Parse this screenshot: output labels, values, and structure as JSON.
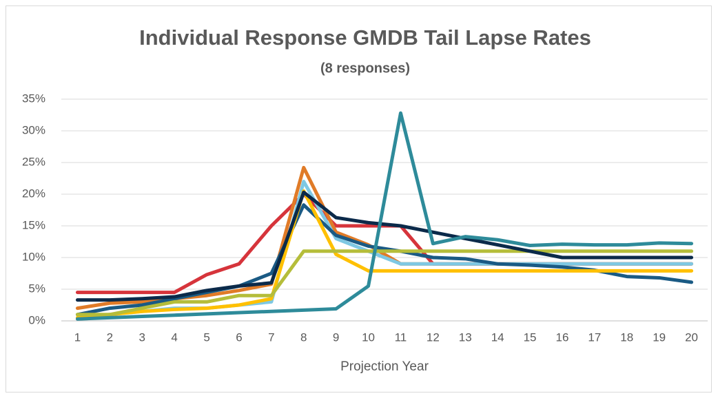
{
  "chart_data": {
    "type": "line",
    "title": "Individual Response GMDB Tail Lapse Rates",
    "subtitle": "(8 responses)",
    "x_label": "Projection Year",
    "categories": [
      "1",
      "2",
      "3",
      "4",
      "5",
      "6",
      "7",
      "8",
      "9",
      "10",
      "11",
      "12",
      "13",
      "14",
      "15",
      "16",
      "17",
      "18",
      "19",
      "20"
    ],
    "ylim": [
      0,
      35
    ],
    "yticks": [
      {
        "value": 0,
        "label": "0%"
      },
      {
        "value": 5,
        "label": "5%"
      },
      {
        "value": 10,
        "label": "10%"
      },
      {
        "value": 15,
        "label": "15%"
      },
      {
        "value": 20,
        "label": "20%"
      },
      {
        "value": 25,
        "label": "25%"
      },
      {
        "value": 30,
        "label": "30%"
      },
      {
        "value": 35,
        "label": "35%"
      }
    ],
    "grid": true,
    "series": [
      {
        "color": "#d6343b",
        "values": [
          4.5,
          4.5,
          4.5,
          4.5,
          7.3,
          9,
          15,
          20,
          15,
          15,
          15,
          9,
          9,
          9,
          9,
          9,
          9,
          9,
          9,
          9
        ]
      },
      {
        "color": "#e07b28",
        "values": [
          2,
          2.8,
          3,
          3.5,
          4,
          4.8,
          5.8,
          24.2,
          14,
          12,
          9,
          9,
          9,
          9,
          9,
          9,
          9,
          9,
          9,
          9
        ]
      },
      {
        "color": "#7ec8e3",
        "values": [
          0.5,
          1,
          1.5,
          2,
          2,
          2.5,
          3,
          22,
          13,
          11,
          9,
          9,
          9,
          9,
          9,
          9,
          9,
          9,
          9,
          9
        ]
      },
      {
        "color": "#1a5a84",
        "values": [
          1,
          2,
          2.5,
          3.5,
          4.5,
          5.5,
          7.5,
          18.3,
          13.5,
          11.8,
          11,
          10,
          9.8,
          9,
          8.8,
          8.5,
          8,
          7,
          6.8,
          6.1
        ]
      },
      {
        "color": "#ffc000",
        "values": [
          0.5,
          1,
          1.5,
          1.8,
          2,
          2.5,
          3.5,
          20.5,
          10.5,
          7.9,
          7.9,
          7.9,
          7.9,
          7.9,
          7.9,
          7.9,
          7.9,
          7.9,
          7.9,
          7.9
        ]
      },
      {
        "color": "#b5bd3a",
        "values": [
          1,
          1,
          2,
          3,
          3,
          4,
          4,
          11,
          11,
          11,
          11,
          11,
          11,
          11,
          11,
          11,
          11,
          11,
          11,
          11
        ]
      },
      {
        "color": "#0b2a4a",
        "values": [
          3.3,
          3.3,
          3.5,
          3.8,
          4.8,
          5.5,
          6,
          20.3,
          16.3,
          15.5,
          15,
          14,
          13,
          12,
          11,
          10,
          10,
          10,
          10,
          10
        ]
      },
      {
        "color": "#2e8b9a",
        "values": [
          0.3,
          0.5,
          0.7,
          0.9,
          1.1,
          1.3,
          1.5,
          1.7,
          1.9,
          5.5,
          32.8,
          12.2,
          13.3,
          12.8,
          11.9,
          12.1,
          12,
          12,
          12.3,
          12.2
        ]
      }
    ]
  }
}
